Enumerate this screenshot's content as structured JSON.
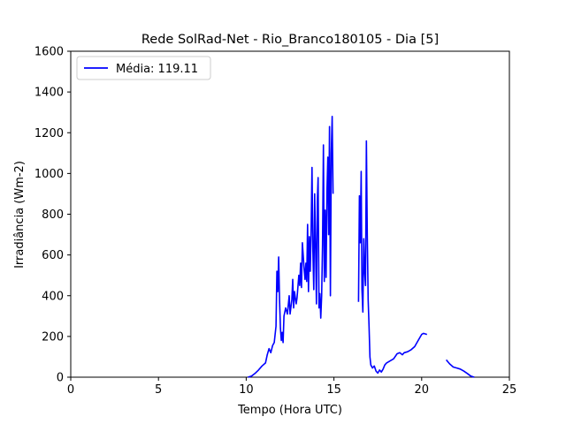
{
  "chart_data": {
    "type": "line",
    "title": "Rede SolRad-Net - Rio_Branco180105 - Dia [5]",
    "xlabel": "Tempo (Hora UTC)",
    "ylabel": "Irradiância (Wm-2)",
    "xlim": [
      0,
      25
    ],
    "ylim": [
      0,
      1600
    ],
    "xticks": [
      0,
      5,
      10,
      15,
      20,
      25
    ],
    "yticks": [
      0,
      200,
      400,
      600,
      800,
      1000,
      1200,
      1400,
      1600
    ],
    "grid": false,
    "legend_position": "top-left",
    "series": [
      {
        "name": "Média: 119.11",
        "color": "#0000ff",
        "segments": [
          [
            [
              10.1,
              0
            ],
            [
              10.3,
              5
            ],
            [
              10.5,
              18
            ],
            [
              10.7,
              35
            ],
            [
              10.9,
              55
            ],
            [
              11.1,
              70
            ],
            [
              11.2,
              110
            ],
            [
              11.3,
              140
            ],
            [
              11.4,
              120
            ],
            [
              11.5,
              155
            ],
            [
              11.6,
              170
            ],
            [
              11.7,
              250
            ],
            [
              11.75,
              520
            ],
            [
              11.8,
              420
            ],
            [
              11.85,
              590
            ],
            [
              11.9,
              380
            ],
            [
              11.95,
              240
            ],
            [
              12.0,
              180
            ],
            [
              12.05,
              220
            ],
            [
              12.1,
              170
            ],
            [
              12.15,
              300
            ],
            [
              12.25,
              340
            ],
            [
              12.35,
              310
            ],
            [
              12.45,
              400
            ],
            [
              12.5,
              310
            ],
            [
              12.6,
              380
            ],
            [
              12.65,
              480
            ],
            [
              12.7,
              340
            ],
            [
              12.75,
              420
            ],
            [
              12.85,
              360
            ],
            [
              12.9,
              390
            ],
            [
              13.0,
              500
            ],
            [
              13.05,
              450
            ],
            [
              13.1,
              560
            ],
            [
              13.15,
              440
            ],
            [
              13.2,
              660
            ],
            [
              13.3,
              530
            ],
            [
              13.35,
              480
            ],
            [
              13.4,
              560
            ],
            [
              13.45,
              470
            ],
            [
              13.5,
              750
            ],
            [
              13.55,
              420
            ],
            [
              13.6,
              690
            ],
            [
              13.65,
              520
            ],
            [
              13.7,
              720
            ],
            [
              13.75,
              1030
            ],
            [
              13.8,
              620
            ],
            [
              13.85,
              430
            ],
            [
              13.9,
              900
            ],
            [
              13.95,
              650
            ],
            [
              14.0,
              360
            ],
            [
              14.05,
              860
            ],
            [
              14.1,
              980
            ],
            [
              14.15,
              340
            ],
            [
              14.2,
              410
            ],
            [
              14.25,
              290
            ],
            [
              14.3,
              400
            ],
            [
              14.35,
              650
            ],
            [
              14.4,
              1140
            ],
            [
              14.45,
              470
            ],
            [
              14.5,
              820
            ],
            [
              14.55,
              490
            ],
            [
              14.6,
              910
            ],
            [
              14.65,
              1080
            ],
            [
              14.7,
              700
            ],
            [
              14.75,
              1230
            ],
            [
              14.8,
              400
            ],
            [
              14.85,
              1100
            ],
            [
              14.9,
              1280
            ],
            [
              14.95,
              900
            ]
          ],
          [
            [
              16.4,
              370
            ],
            [
              16.45,
              890
            ],
            [
              16.5,
              660
            ],
            [
              16.55,
              1010
            ],
            [
              16.6,
              430
            ],
            [
              16.65,
              320
            ],
            [
              16.7,
              680
            ],
            [
              16.75,
              520
            ],
            [
              16.8,
              450
            ],
            [
              16.85,
              1160
            ],
            [
              16.9,
              700
            ],
            [
              16.95,
              380
            ],
            [
              17.0,
              250
            ],
            [
              17.05,
              100
            ],
            [
              17.1,
              60
            ],
            [
              17.2,
              45
            ],
            [
              17.3,
              55
            ],
            [
              17.4,
              30
            ],
            [
              17.5,
              20
            ],
            [
              17.6,
              35
            ],
            [
              17.7,
              25
            ],
            [
              17.8,
              40
            ],
            [
              17.9,
              60
            ],
            [
              18.0,
              70
            ],
            [
              18.2,
              80
            ],
            [
              18.4,
              90
            ],
            [
              18.6,
              115
            ],
            [
              18.75,
              120
            ],
            [
              18.9,
              110
            ],
            [
              19.0,
              120
            ],
            [
              19.2,
              125
            ],
            [
              19.4,
              135
            ],
            [
              19.6,
              150
            ],
            [
              19.8,
              180
            ],
            [
              20.0,
              210
            ],
            [
              20.1,
              215
            ],
            [
              20.3,
              210
            ]
          ],
          [
            [
              21.4,
              85
            ],
            [
              21.6,
              65
            ],
            [
              21.8,
              50
            ],
            [
              22.0,
              45
            ],
            [
              22.2,
              40
            ],
            [
              22.4,
              30
            ],
            [
              22.6,
              18
            ],
            [
              22.8,
              5
            ],
            [
              23.0,
              0
            ]
          ]
        ]
      }
    ]
  }
}
